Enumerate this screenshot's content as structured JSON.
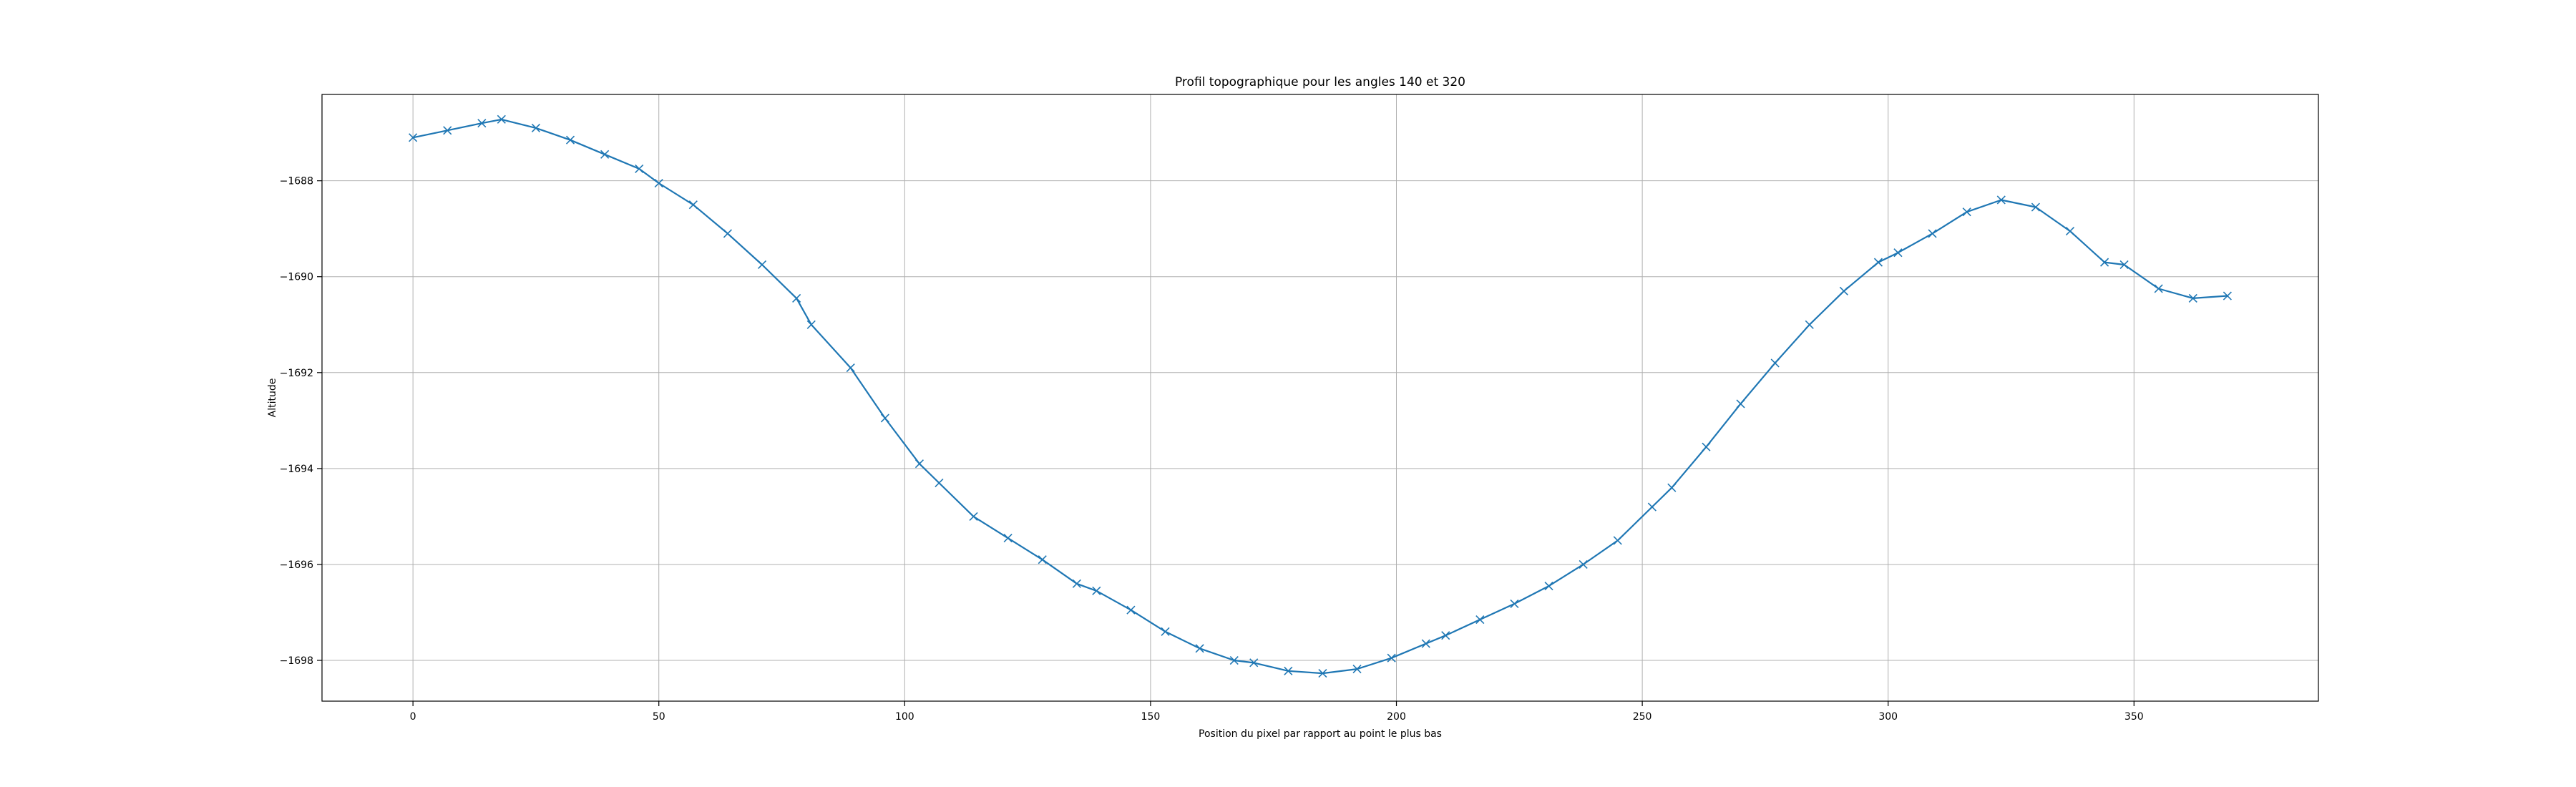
{
  "chart_data": {
    "type": "line",
    "title": "Profil topographique pour les angles 140 et 320",
    "xlabel": "Position du pixel par rapport au point le plus bas",
    "ylabel": "Altitude",
    "xlim": [
      -18.5,
      387.5
    ],
    "ylim": [
      -1698.85,
      -1686.2
    ],
    "xticks": [
      0,
      50,
      100,
      150,
      200,
      250,
      300,
      350
    ],
    "yticks": [
      -1698,
      -1696,
      -1694,
      -1692,
      -1690,
      -1688
    ],
    "grid": true,
    "marker": "x",
    "color": "#1f77b4",
    "series": [
      {
        "x": [
          0,
          7,
          14,
          18,
          25,
          32,
          39,
          46,
          50,
          57,
          64,
          71,
          78,
          81,
          89,
          96,
          103,
          107,
          114,
          121,
          128,
          135,
          139,
          146,
          153,
          160,
          167,
          171,
          178,
          185,
          192,
          199,
          206,
          210,
          217,
          224,
          231,
          238,
          245,
          252,
          256,
          263,
          270,
          277,
          284,
          291,
          298,
          302,
          309,
          316,
          323,
          330,
          337,
          344,
          348,
          355,
          362,
          369
        ],
        "y": [
          -1687.1,
          -1686.95,
          -1686.8,
          -1686.72,
          -1686.9,
          -1687.15,
          -1687.45,
          -1687.75,
          -1688.05,
          -1688.5,
          -1689.1,
          -1689.75,
          -1690.45,
          -1691.0,
          -1691.9,
          -1692.95,
          -1693.9,
          -1694.3,
          -1695.0,
          -1695.45,
          -1695.9,
          -1696.4,
          -1696.55,
          -1696.95,
          -1697.4,
          -1697.75,
          -1698.0,
          -1698.05,
          -1698.22,
          -1698.27,
          -1698.18,
          -1697.95,
          -1697.65,
          -1697.48,
          -1697.15,
          -1696.82,
          -1696.45,
          -1696.0,
          -1695.5,
          -1694.8,
          -1694.4,
          -1693.55,
          -1692.65,
          -1691.8,
          -1691.0,
          -1690.3,
          -1689.7,
          -1689.5,
          -1689.1,
          -1688.65,
          -1688.4,
          -1688.55,
          -1689.05,
          -1689.7,
          -1689.75,
          -1690.25,
          -1690.45,
          -1690.4
        ]
      }
    ]
  }
}
